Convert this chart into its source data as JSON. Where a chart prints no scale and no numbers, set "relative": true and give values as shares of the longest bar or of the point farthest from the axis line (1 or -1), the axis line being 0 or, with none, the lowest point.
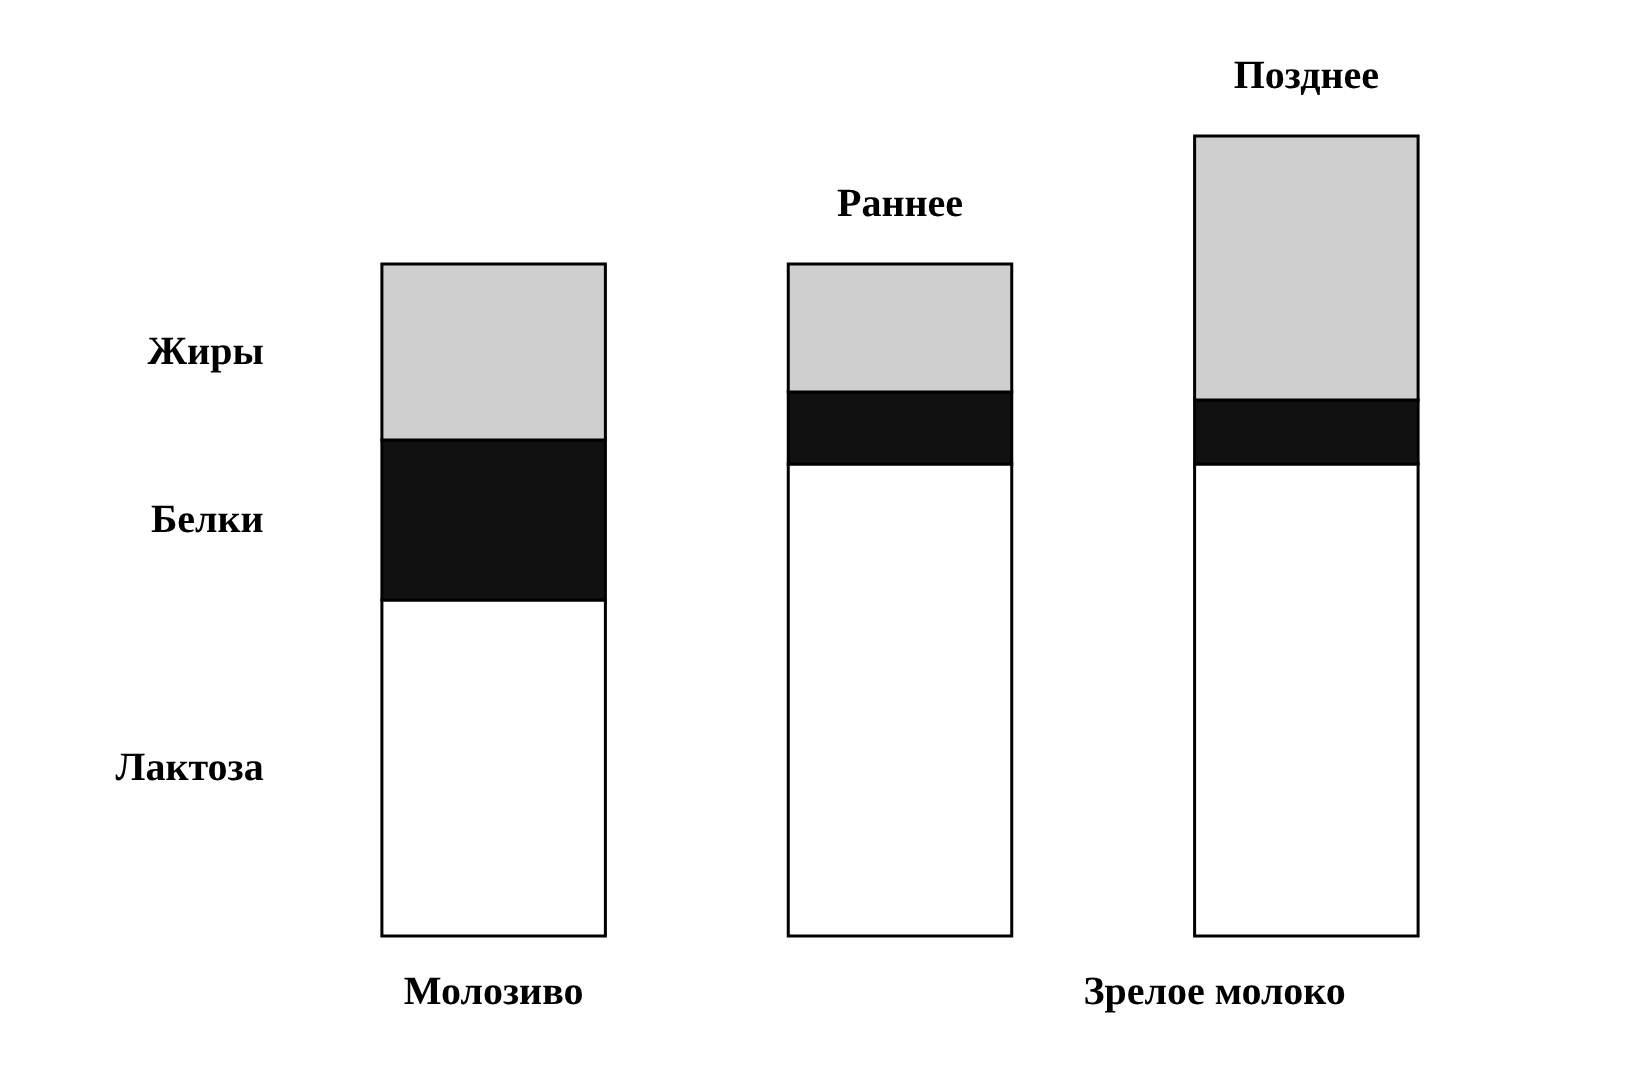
{
  "chart_data": {
    "type": "bar",
    "stacked": true,
    "relative": true,
    "categories": [
      "Молозиво",
      "Раннее",
      "Позднее"
    ],
    "series": [
      {
        "name": "Лактоза",
        "color": "#ffffff",
        "values": [
          0.42,
          0.59,
          0.59
        ]
      },
      {
        "name": "Белки",
        "color": "#111111",
        "values": [
          0.2,
          0.09,
          0.08
        ]
      },
      {
        "name": "Жиры",
        "color": "#cfcfcf",
        "values": [
          0.22,
          0.16,
          0.33
        ]
      }
    ],
    "annotations": [
      "Зрелое молоко"
    ]
  }
}
